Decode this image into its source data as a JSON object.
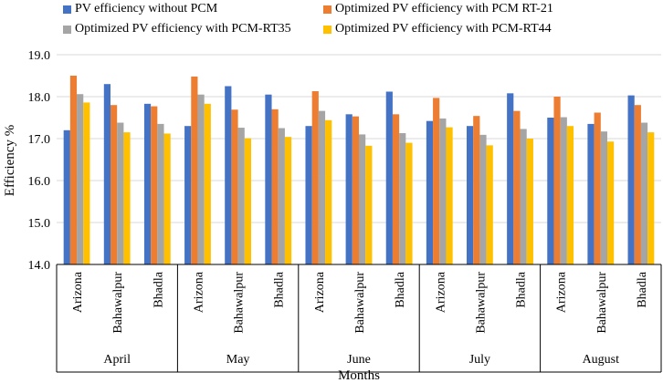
{
  "chart_data": {
    "type": "bar",
    "title": "",
    "xlabel": "Months",
    "ylabel": "Efficiency %",
    "ylim": [
      14.0,
      19.0
    ],
    "yticks": [
      "14.0",
      "15.0",
      "16.0",
      "17.0",
      "18.0",
      "19.0"
    ],
    "ytick_values": [
      14.0,
      15.0,
      16.0,
      17.0,
      18.0,
      19.0
    ],
    "months": [
      "April",
      "May",
      "June",
      "July",
      "August"
    ],
    "locations": [
      "Arizona",
      "Bahawalpur",
      "Bhadla"
    ],
    "categories": [
      "April-Arizona",
      "April-Bahawalpur",
      "April-Bhadla",
      "May-Arizona",
      "May-Bahawalpur",
      "May-Bhadla",
      "June-Arizona",
      "June-Bahawalpur",
      "June-Bhadla",
      "July-Arizona",
      "July-Bahawalpur",
      "July-Bhadla",
      "August-Arizona",
      "August-Bahawalpur",
      "August-Bhadla"
    ],
    "series": [
      {
        "name": "PV efficiency without PCM",
        "color": "#4472C4",
        "values": [
          17.2,
          18.3,
          17.83,
          17.3,
          18.25,
          18.05,
          17.3,
          17.58,
          18.12,
          17.42,
          17.3,
          18.08,
          17.5,
          17.35,
          18.03
        ]
      },
      {
        "name": "Optimized PV efficiency with PCM RT-21",
        "color": "#ED7D31",
        "values": [
          18.5,
          17.8,
          17.77,
          18.48,
          17.69,
          17.7,
          18.13,
          17.53,
          17.58,
          17.97,
          17.54,
          17.66,
          18.0,
          17.62,
          17.8
        ]
      },
      {
        "name": "Optimized PV efficiency with PCM-RT35",
        "color": "#A5A5A5",
        "values": [
          18.06,
          17.38,
          17.35,
          18.05,
          17.26,
          17.25,
          17.66,
          17.1,
          17.13,
          17.48,
          17.09,
          17.23,
          17.51,
          17.17,
          17.38
        ]
      },
      {
        "name": "Optimized PV efficiency with PCM-RT44",
        "color": "#FFC000",
        "values": [
          17.86,
          17.15,
          17.12,
          17.83,
          17.01,
          17.04,
          17.44,
          16.83,
          16.9,
          17.27,
          16.84,
          17.0,
          17.3,
          16.93,
          17.15
        ]
      }
    ],
    "grid": true,
    "legend_position": "top"
  }
}
